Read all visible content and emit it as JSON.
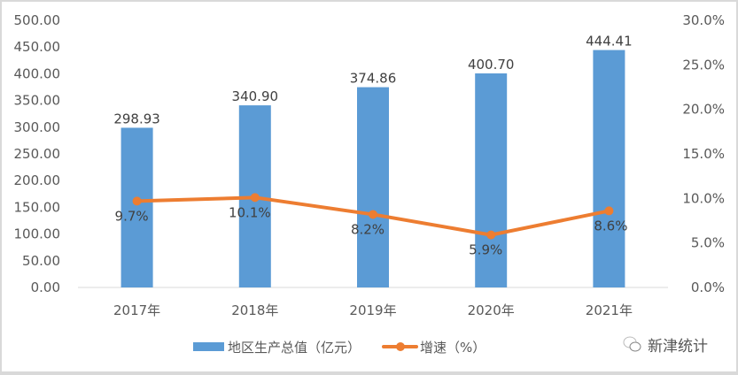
{
  "chart_data": {
    "type": "bar+line",
    "categories": [
      "2017年",
      "2018年",
      "2019年",
      "2020年",
      "2021年"
    ],
    "series": [
      {
        "name": "地区生产总值（亿元）",
        "type": "bar",
        "axis": "left",
        "values": [
          298.93,
          340.9,
          374.86,
          400.7,
          444.41
        ],
        "labels": [
          "298.93",
          "340.90",
          "374.86",
          "400.70",
          "444.41"
        ],
        "color": "#5b9bd5"
      },
      {
        "name": "增速（%）",
        "type": "line",
        "axis": "right",
        "values": [
          9.7,
          10.1,
          8.2,
          5.9,
          8.6
        ],
        "labels": [
          "9.7%",
          "10.1%",
          "8.2%",
          "5.9%",
          "8.6%"
        ],
        "color": "#ed7d31"
      }
    ],
    "y_left": {
      "range": [
        0,
        500
      ],
      "ticks": [
        "0.00",
        "50.00",
        "100.00",
        "150.00",
        "200.00",
        "250.00",
        "300.00",
        "350.00",
        "400.00",
        "450.00",
        "500.00"
      ]
    },
    "y_right": {
      "range": [
        0,
        30
      ],
      "ticks": [
        "0.0%",
        "5.0%",
        "10.0%",
        "15.0%",
        "20.0%",
        "25.0%",
        "30.0%"
      ]
    },
    "grid": false,
    "legend": "bottom"
  },
  "watermark": {
    "text": "新津统计",
    "icon": "wechat-icon"
  }
}
